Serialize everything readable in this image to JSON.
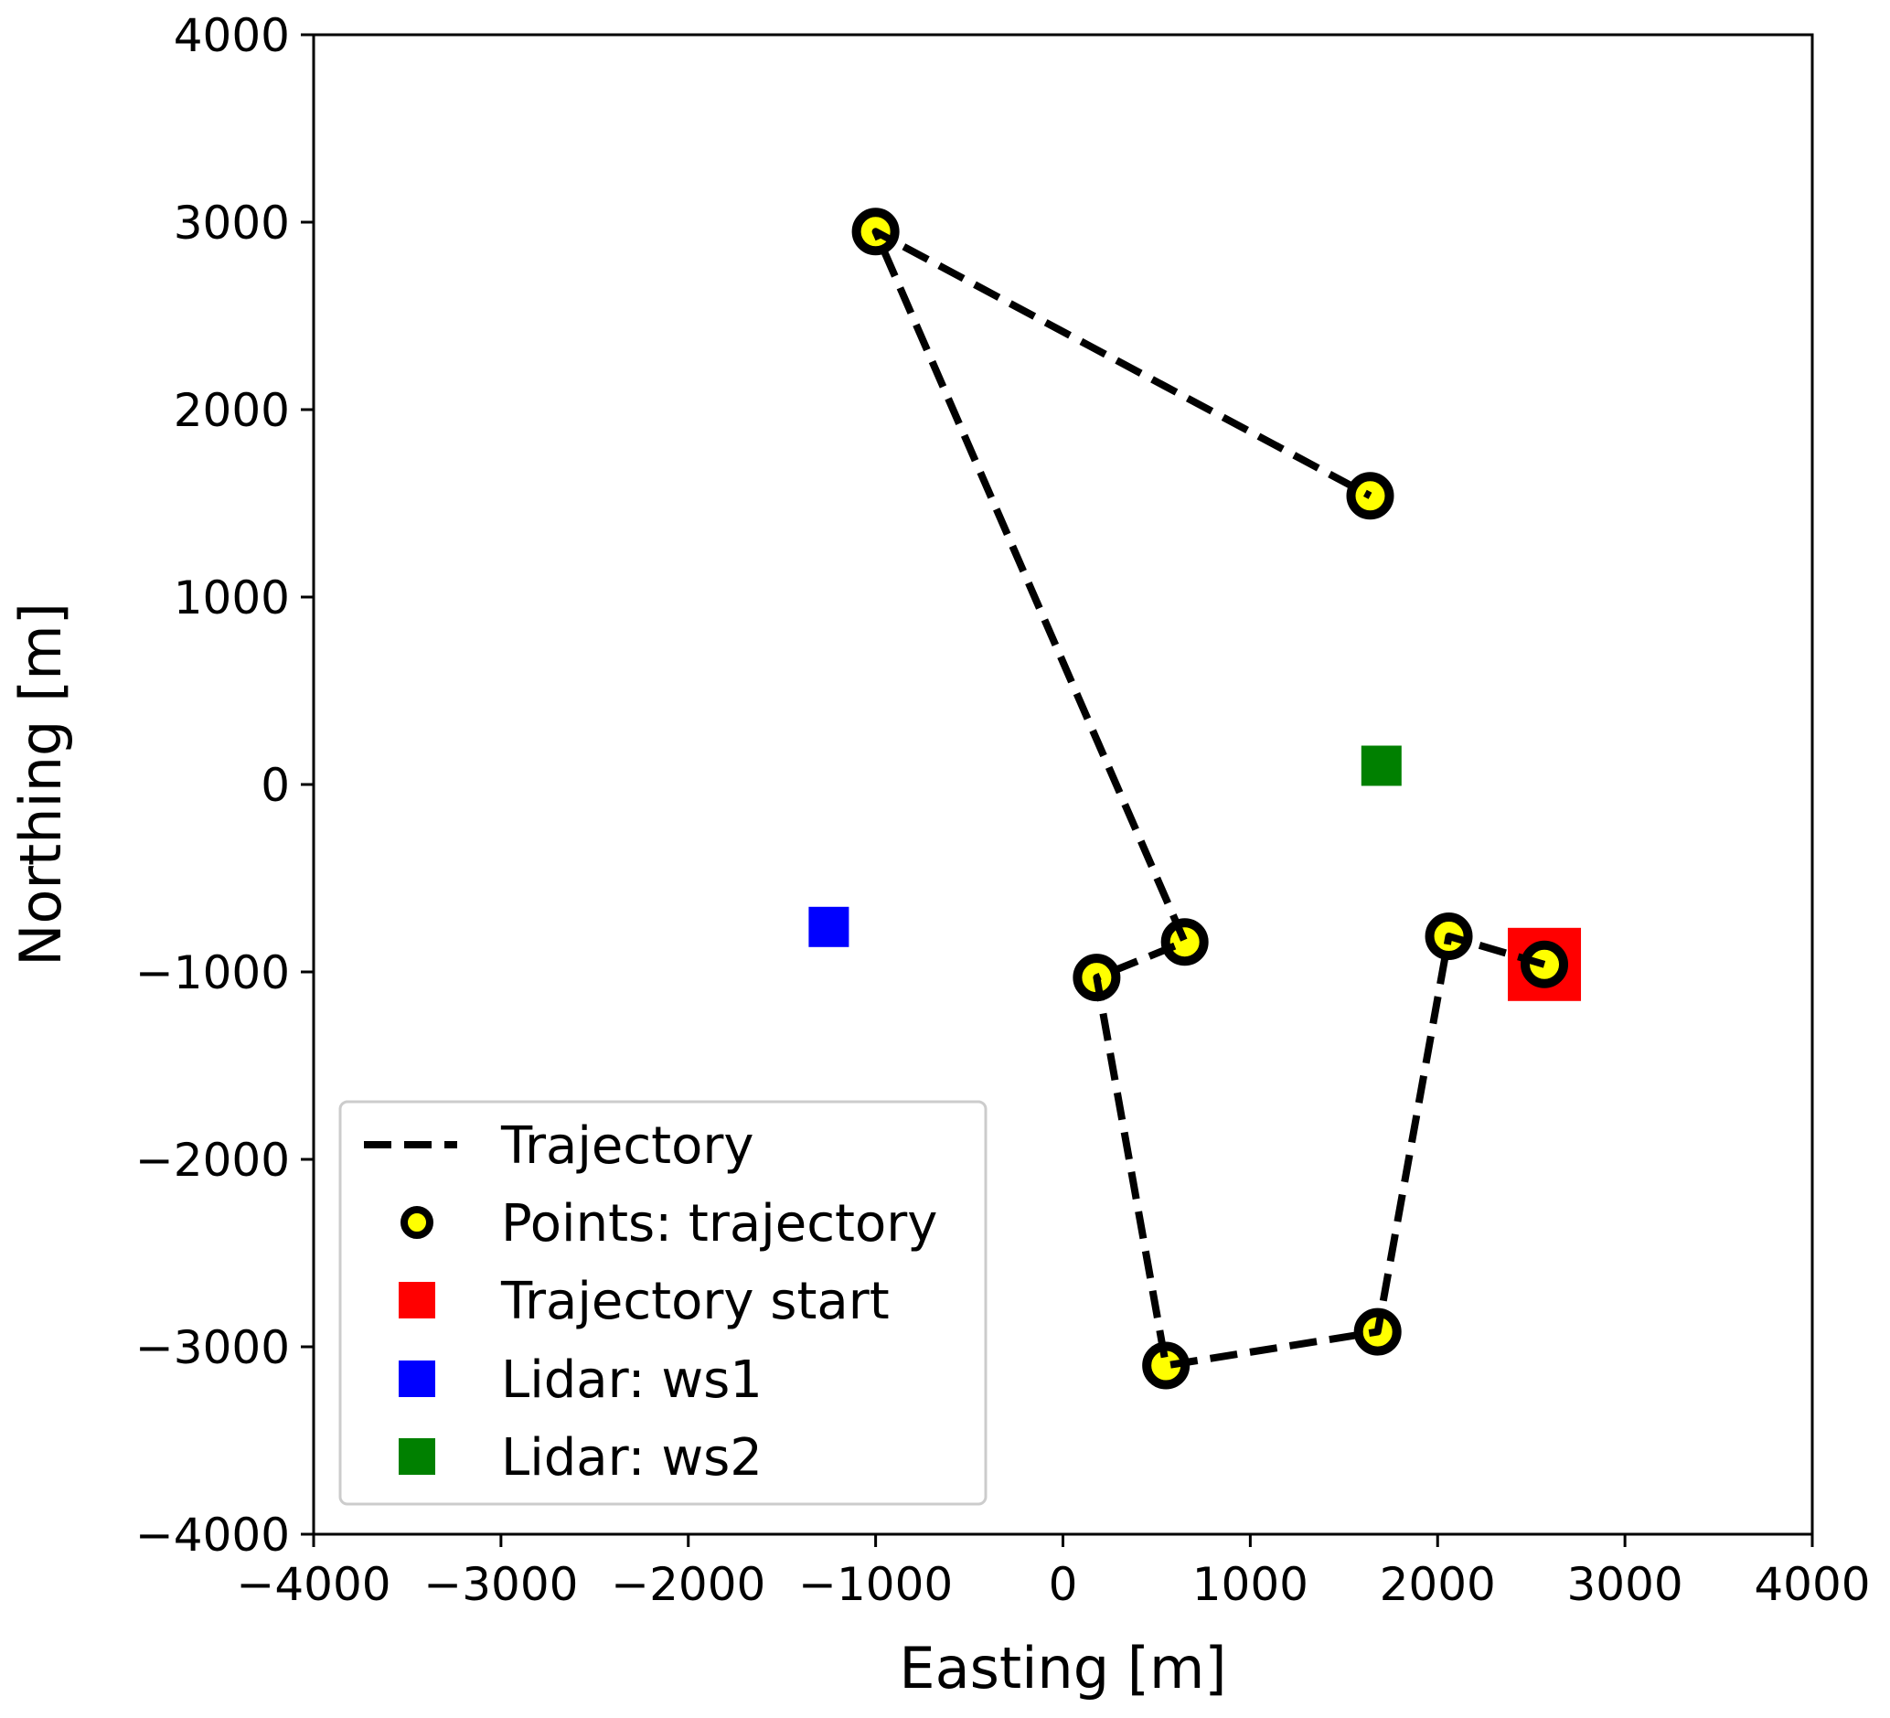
{
  "chart_data": {
    "type": "scatter",
    "xlabel": "Easting [m]",
    "ylabel": "Northing [m]",
    "xlim": [
      -4000,
      4000
    ],
    "ylim": [
      -4000,
      4000
    ],
    "xticks": [
      -4000,
      -3000,
      -2000,
      -1000,
      0,
      1000,
      2000,
      3000,
      4000
    ],
    "yticks": [
      -4000,
      -3000,
      -2000,
      -1000,
      0,
      1000,
      2000,
      3000,
      4000
    ],
    "xtick_labels": [
      "−4000",
      "−3000",
      "−2000",
      "−1000",
      "0",
      "1000",
      "2000",
      "3000",
      "4000"
    ],
    "ytick_labels": [
      "−4000",
      "−3000",
      "−2000",
      "−1000",
      "0",
      "1000",
      "2000",
      "3000",
      "4000"
    ],
    "grid": false,
    "legend_position": "lower-left",
    "series": [
      {
        "name": "Trajectory",
        "kind": "line",
        "style": "dashed",
        "color": "#000000",
        "points": [
          [
            2570,
            -960
          ],
          [
            2060,
            -810
          ],
          [
            1680,
            -2920
          ],
          [
            550,
            -3100
          ],
          [
            180,
            -1030
          ],
          [
            650,
            -840
          ],
          [
            -1000,
            2950
          ],
          [
            1640,
            1540
          ]
        ]
      },
      {
        "name": "Points: trajectory",
        "kind": "marker",
        "marker": "circle",
        "color": "#ffff00",
        "edge_color": "#000000",
        "points": [
          [
            2570,
            -960
          ],
          [
            2060,
            -810
          ],
          [
            1680,
            -2920
          ],
          [
            550,
            -3100
          ],
          [
            180,
            -1030
          ],
          [
            650,
            -840
          ],
          [
            -1000,
            2950
          ],
          [
            1640,
            1540
          ]
        ]
      },
      {
        "name": "Trajectory start",
        "kind": "marker",
        "marker": "square",
        "color": "#ff0000",
        "points": [
          [
            2570,
            -960
          ]
        ]
      },
      {
        "name": "Lidar: ws1",
        "kind": "marker",
        "marker": "square",
        "color": "#0000ff",
        "points": [
          [
            -1250,
            -760
          ]
        ]
      },
      {
        "name": "Lidar: ws2",
        "kind": "marker",
        "marker": "square",
        "color": "#008000",
        "points": [
          [
            1700,
            100
          ]
        ]
      }
    ]
  }
}
